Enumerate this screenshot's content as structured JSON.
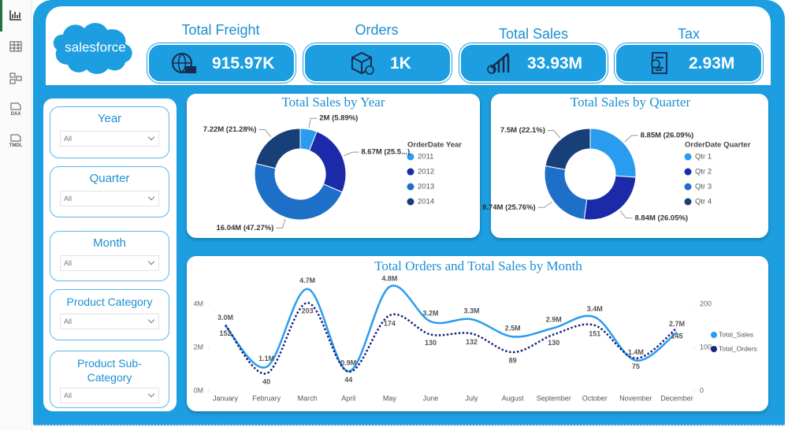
{
  "sidebar": {
    "items": [
      "DAX",
      "TMDL"
    ]
  },
  "header": {
    "logo": "salesforce",
    "kpis": [
      {
        "label": "Total Freight",
        "value": "915.97K"
      },
      {
        "label": "Orders",
        "value": "1K"
      },
      {
        "label": "Total Sales",
        "value": "33.93M"
      },
      {
        "label": "Tax",
        "value": "2.93M"
      }
    ]
  },
  "filters": [
    {
      "label": "Year",
      "value": "All"
    },
    {
      "label": "Quarter",
      "value": "All"
    },
    {
      "label": "Month",
      "value": "All"
    },
    {
      "label": "Product Category",
      "value": "All"
    },
    {
      "label": "Product Sub-Category",
      "value": "All"
    }
  ],
  "chart_data": [
    {
      "type": "pie",
      "title": "Total Sales by Year",
      "legend_title": "OrderDate Year",
      "categories": [
        "2011",
        "2012",
        "2013",
        "2014"
      ],
      "values": [
        2,
        8.67,
        16.04,
        7.22
      ],
      "value_labels": [
        "2M (5.89%)",
        "8.67M (25.5...)",
        "16.04M (47.27%)",
        "7.22M (21.28%)"
      ],
      "colors": [
        "#2a9cf0",
        "#1a2aa8",
        "#1e6fc8",
        "#173f78"
      ]
    },
    {
      "type": "pie",
      "title": "Total Sales by Quarter",
      "legend_title": "OrderDate Quarter",
      "categories": [
        "Qtr 1",
        "Qtr 2",
        "Qtr 3",
        "Qtr 4"
      ],
      "values": [
        8.85,
        8.84,
        8.74,
        7.5
      ],
      "value_labels": [
        "8.85M (26.09%)",
        "8.84M (26.05%)",
        "8.74M (25.76%)",
        "7.5M (22.1%)"
      ],
      "colors": [
        "#2a9cf0",
        "#1a2aa8",
        "#1e6fc8",
        "#173f78"
      ]
    },
    {
      "type": "line",
      "title": "Total Orders and Total Sales by Month",
      "categories": [
        "January",
        "February",
        "March",
        "April",
        "May",
        "June",
        "July",
        "August",
        "September",
        "October",
        "November",
        "December"
      ],
      "series": [
        {
          "name": "Total_Sales",
          "color": "#2a9cf0",
          "style": "solid",
          "values": [
            3.0,
            1.1,
            4.7,
            0.9,
            4.8,
            3.2,
            3.3,
            2.5,
            2.9,
            3.4,
            1.4,
            2.7
          ],
          "value_labels": [
            "3.0M",
            "1.1M",
            "4.7M",
            "0.9M",
            "4.8M",
            "3.2M",
            "3.3M",
            "2.5M",
            "2.9M",
            "3.4M",
            "1.4M",
            "2.7M"
          ]
        },
        {
          "name": "Total_Orders",
          "color": "#1a237e",
          "style": "dotted",
          "axis": "y2",
          "values": [
            152,
            40,
            203,
            44,
            174,
            130,
            132,
            89,
            130,
            151,
            75,
            145
          ]
        }
      ],
      "ylim": [
        0,
        5
      ],
      "yticks": [
        {
          "value": 0,
          "label": "0M"
        },
        {
          "value": 2,
          "label": "2M"
        },
        {
          "value": 4,
          "label": "4M"
        }
      ],
      "y2lim": [
        0,
        250
      ],
      "y2ticks": [
        0,
        100,
        200
      ]
    }
  ]
}
